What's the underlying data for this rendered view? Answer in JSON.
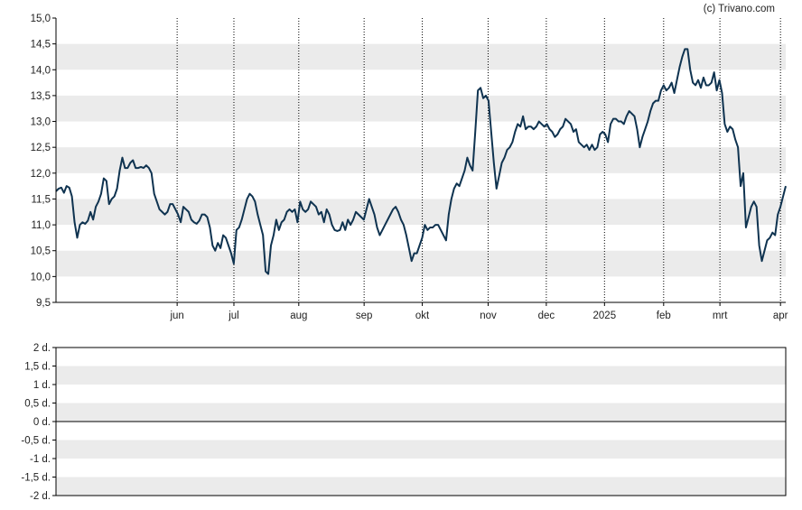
{
  "credit": "(c) Trivano.com",
  "colors": {
    "line": "#0f3350",
    "band": "#ebebeb",
    "background": "#ffffff",
    "axis": "#000000"
  },
  "chart_data": [
    {
      "type": "line",
      "series": [
        {
          "values": [
            11.65,
            11.7,
            11.72,
            11.62,
            11.75,
            11.72,
            11.55,
            11.05,
            10.75,
            11.0,
            11.05,
            11.02,
            11.08,
            11.25,
            11.1,
            11.35,
            11.45,
            11.6,
            11.9,
            11.85,
            11.4,
            11.5,
            11.55,
            11.7,
            12.05,
            12.3,
            12.1,
            12.1,
            12.2,
            12.25,
            12.1,
            12.1,
            12.12,
            12.1,
            12.15,
            12.1,
            12.0,
            11.6,
            11.45,
            11.3,
            11.25,
            11.2,
            11.25,
            11.4,
            11.4,
            11.3,
            11.2,
            11.05,
            11.35,
            11.3,
            11.25,
            11.1,
            11.05,
            11.02,
            11.08,
            11.2,
            11.2,
            11.15,
            10.95,
            10.6,
            10.5,
            10.65,
            10.55,
            10.8,
            10.75,
            10.6,
            10.45,
            10.25,
            10.9,
            10.95,
            11.1,
            11.3,
            11.5,
            11.6,
            11.55,
            11.45,
            11.2,
            11.0,
            10.8,
            10.1,
            10.05,
            10.6,
            10.8,
            11.1,
            10.9,
            11.05,
            11.1,
            11.25,
            11.3,
            11.25,
            11.3,
            11.05,
            11.45,
            11.3,
            11.25,
            11.3,
            11.45,
            11.4,
            11.35,
            11.2,
            11.25,
            11.05,
            11.3,
            11.2,
            11.0,
            10.9,
            10.88,
            10.9,
            11.05,
            10.9,
            11.1,
            11.0,
            11.1,
            11.25,
            11.2,
            11.15,
            11.1,
            11.3,
            11.5,
            11.35,
            11.2,
            10.95,
            10.8,
            10.9,
            11.0,
            11.1,
            11.2,
            11.3,
            11.35,
            11.25,
            11.1,
            11.0,
            10.8,
            10.55,
            10.3,
            10.45,
            10.45,
            10.6,
            10.75,
            11.0,
            10.9,
            10.95,
            10.95,
            11.0,
            11.0,
            10.9,
            10.8,
            10.7,
            11.2,
            11.5,
            11.7,
            11.8,
            11.75,
            11.9,
            12.05,
            12.3,
            12.15,
            12.05,
            12.8,
            13.6,
            13.65,
            13.45,
            13.5,
            13.4,
            12.8,
            12.2,
            11.7,
            11.95,
            12.2,
            12.3,
            12.45,
            12.5,
            12.6,
            12.8,
            12.95,
            12.9,
            13.1,
            12.85,
            12.9,
            12.9,
            12.85,
            12.9,
            13.0,
            12.95,
            12.9,
            12.95,
            12.85,
            12.8,
            12.7,
            12.75,
            12.85,
            12.9,
            13.05,
            13.0,
            12.95,
            12.8,
            12.85,
            12.6,
            12.55,
            12.5,
            12.55,
            12.45,
            12.55,
            12.45,
            12.5,
            12.75,
            12.8,
            12.75,
            12.6,
            12.95,
            13.05,
            13.05,
            13.0,
            13.0,
            12.95,
            13.1,
            13.2,
            13.15,
            13.1,
            12.85,
            12.5,
            12.7,
            12.85,
            13.0,
            13.2,
            13.35,
            13.4,
            13.4,
            13.6,
            13.7,
            13.6,
            13.65,
            13.75,
            13.55,
            13.8,
            14.05,
            14.25,
            14.4,
            14.4,
            14.0,
            13.75,
            13.7,
            13.8,
            13.65,
            13.85,
            13.7,
            13.7,
            13.75,
            13.95,
            13.6,
            13.8,
            13.55,
            12.95,
            12.8,
            12.9,
            12.85,
            12.65,
            12.5,
            11.75,
            12.0,
            10.95,
            11.15,
            11.35,
            11.45,
            11.35,
            10.6,
            10.3,
            10.5,
            10.7,
            10.75,
            10.85,
            10.8,
            11.2,
            11.35,
            11.55,
            11.75
          ]
        }
      ],
      "x_tick_labels": [
        "jun",
        "jul",
        "aug",
        "sep",
        "okt",
        "nov",
        "dec",
        "2025",
        "feb",
        "mrt",
        "apr"
      ],
      "x_tick_positions": [
        25.4,
        37.3,
        50.9,
        64.6,
        76.8,
        90.6,
        102.8,
        115.0,
        127.4,
        139.2,
        151.9
      ],
      "x_range": [
        0,
        153
      ],
      "y_tick_labels": [
        "15,0",
        "14,5",
        "14,0",
        "13,5",
        "13,0",
        "12,5",
        "12,0",
        "11,5",
        "11,0",
        "10,5",
        "10,0",
        "9,5"
      ],
      "ylim": [
        9.5,
        15.0
      ],
      "grid": "vertical dotted at month boundaries, alternating horizontal bands"
    },
    {
      "type": "line",
      "series": [],
      "y_tick_labels": [
        "2 d.",
        "1,5 d.",
        "1 d.",
        "0,5 d.",
        "0 d.",
        "-0,5 d.",
        "-1 d.",
        "-1,5 d.",
        "-2 d."
      ],
      "ylim": [
        -2,
        2
      ],
      "grid": "alternating horizontal bands, zero line"
    }
  ]
}
